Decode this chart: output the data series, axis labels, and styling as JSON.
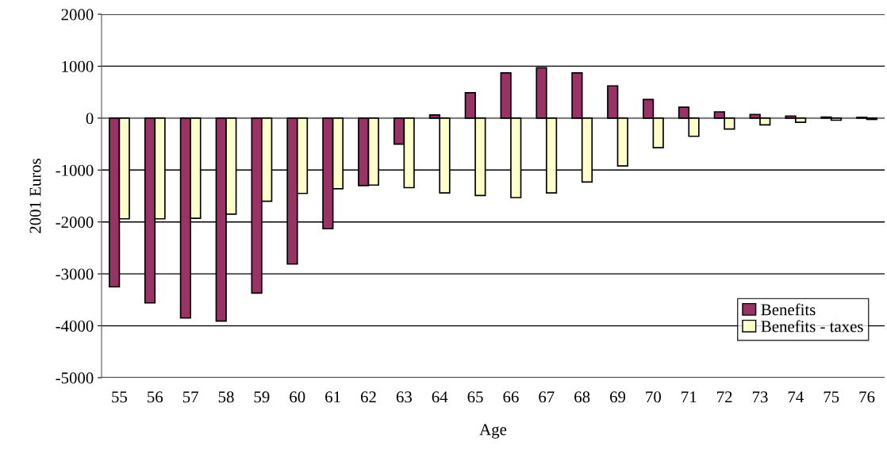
{
  "chart_data": {
    "type": "bar",
    "xlabel": "Age",
    "ylabel": "2001 Euros",
    "categories": [
      "55",
      "56",
      "57",
      "58",
      "59",
      "60",
      "61",
      "62",
      "63",
      "64",
      "65",
      "66",
      "67",
      "68",
      "69",
      "70",
      "71",
      "72",
      "73",
      "74",
      "75",
      "76"
    ],
    "series": [
      {
        "name": "Benefits",
        "color": "#993366",
        "values": [
          -3250,
          -3560,
          -3850,
          -3910,
          -3370,
          -2810,
          -2130,
          -1300,
          -500,
          60,
          490,
          870,
          970,
          870,
          620,
          360,
          210,
          120,
          70,
          40,
          20,
          15
        ]
      },
      {
        "name": "Benefits - taxes",
        "color": "#ffffcc",
        "values": [
          -1940,
          -1940,
          -1930,
          -1850,
          -1600,
          -1450,
          -1360,
          -1290,
          -1340,
          -1440,
          -1490,
          -1530,
          -1440,
          -1230,
          -920,
          -570,
          -350,
          -210,
          -130,
          -80,
          -40,
          -25
        ]
      }
    ],
    "ylim": [
      -5000,
      2000
    ],
    "yticks": [
      -5000,
      -4000,
      -3000,
      -2000,
      -1000,
      0,
      1000,
      2000
    ],
    "grid": "y",
    "legend": "bottom right"
  }
}
